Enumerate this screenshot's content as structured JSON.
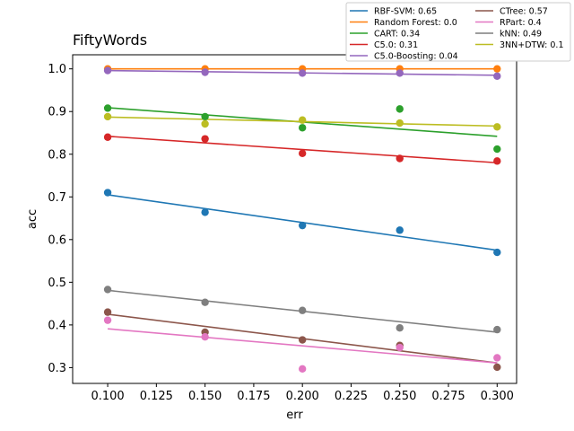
{
  "chart_data": {
    "type": "scatter",
    "title": "FiftyWords",
    "xlabel": "err",
    "ylabel": "acc",
    "xlim": [
      0.082,
      0.31
    ],
    "ylim": [
      0.263,
      1.033
    ],
    "xticks": [
      "0.100",
      "0.125",
      "0.150",
      "0.175",
      "0.200",
      "0.225",
      "0.250",
      "0.275",
      "0.300"
    ],
    "yticks": [
      "0.3",
      "0.4",
      "0.5",
      "0.6",
      "0.7",
      "0.8",
      "0.9",
      "1.0"
    ],
    "legend_placement": "top-right, above axes",
    "grid": false,
    "series": [
      {
        "name": "RBF-SVM: 0.65",
        "color": "#1f77b4",
        "x": [
          0.1,
          0.15,
          0.2,
          0.25,
          0.3
        ],
        "y": [
          0.71,
          0.664,
          0.633,
          0.622,
          0.57
        ],
        "fit": [
          0.705,
          0.575
        ]
      },
      {
        "name": "Random Forest: 0.0",
        "color": "#ff7f0e",
        "x": [
          0.1,
          0.15,
          0.2,
          0.25,
          0.3
        ],
        "y": [
          1.0,
          1.0,
          1.0,
          1.0,
          1.0
        ],
        "fit": [
          1.0,
          1.0
        ]
      },
      {
        "name": "CART: 0.34",
        "color": "#2ca02c",
        "x": [
          0.1,
          0.15,
          0.2,
          0.25,
          0.3
        ],
        "y": [
          0.908,
          0.888,
          0.862,
          0.906,
          0.812
        ],
        "fit": [
          0.909,
          0.842
        ]
      },
      {
        "name": "C5.0: 0.31",
        "color": "#d62728",
        "x": [
          0.1,
          0.15,
          0.2,
          0.25,
          0.3
        ],
        "y": [
          0.84,
          0.836,
          0.802,
          0.79,
          0.784
        ],
        "fit": [
          0.842,
          0.78
        ]
      },
      {
        "name": "C5.0-Boosting: 0.04",
        "color": "#9467bd",
        "x": [
          0.1,
          0.15,
          0.2,
          0.25,
          0.3
        ],
        "y": [
          0.996,
          0.992,
          0.99,
          0.99,
          0.983
        ],
        "fit": [
          0.996,
          0.985
        ]
      },
      {
        "name": "CTree: 0.57",
        "color": "#8c564b",
        "x": [
          0.1,
          0.15,
          0.2,
          0.25,
          0.3
        ],
        "y": [
          0.43,
          0.383,
          0.365,
          0.352,
          0.301
        ],
        "fit": [
          0.425,
          0.311
        ]
      },
      {
        "name": "RPart: 0.4",
        "color": "#e377c2",
        "x": [
          0.1,
          0.15,
          0.2,
          0.25,
          0.3
        ],
        "y": [
          0.411,
          0.372,
          0.297,
          0.347,
          0.323
        ],
        "fit": [
          0.391,
          0.311
        ]
      },
      {
        "name": "kNN: 0.49",
        "color": "#7f7f7f",
        "x": [
          0.1,
          0.15,
          0.2,
          0.25,
          0.3
        ],
        "y": [
          0.483,
          0.453,
          0.434,
          0.393,
          0.389
        ],
        "fit": [
          0.481,
          0.383
        ]
      },
      {
        "name": "3NN+DTW: 0.1",
        "color": "#bcbd22",
        "x": [
          0.1,
          0.15,
          0.2,
          0.25,
          0.3
        ],
        "y": [
          0.888,
          0.871,
          0.88,
          0.873,
          0.864
        ],
        "fit": [
          0.887,
          0.866
        ]
      }
    ]
  }
}
